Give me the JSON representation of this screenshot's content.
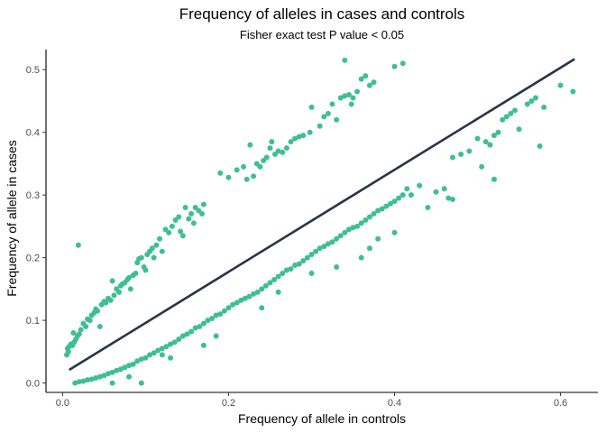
{
  "chart_data": {
    "type": "scatter",
    "title": "Frequency of alleles in cases and controls",
    "subtitle": "Fisher exact test P value < 0.05",
    "xlabel": "Frequency of allele in controls",
    "ylabel": "Frequency of allele in cases",
    "xlim": [
      -0.02,
      0.645
    ],
    "ylim": [
      -0.015,
      0.532
    ],
    "x_ticks": [
      0.0,
      0.2,
      0.4,
      0.6
    ],
    "x_tick_labels": [
      "0.0",
      "0.2",
      "0.4",
      "0.6"
    ],
    "y_ticks": [
      0.0,
      0.1,
      0.2,
      0.3,
      0.4,
      0.5
    ],
    "y_tick_labels": [
      "0.0",
      "0.1",
      "0.2",
      "0.3",
      "0.4",
      "0.5"
    ],
    "grid": false,
    "point_color": "#3fbf91",
    "line_color": "#253647",
    "trend_line": {
      "x": [
        0.008,
        0.617
      ],
      "y": [
        0.021,
        0.517
      ]
    },
    "points": [
      [
        0.005,
        0.045
      ],
      [
        0.006,
        0.055
      ],
      [
        0.007,
        0.05
      ],
      [
        0.008,
        0.058
      ],
      [
        0.01,
        0.062
      ],
      [
        0.012,
        0.06
      ],
      [
        0.014,
        0.065
      ],
      [
        0.013,
        0.08
      ],
      [
        0.016,
        0.07
      ],
      [
        0.018,
        0.075
      ],
      [
        0.02,
        0.078
      ],
      [
        0.022,
        0.085
      ],
      [
        0.019,
        0.22
      ],
      [
        0.025,
        0.095
      ],
      [
        0.028,
        0.09
      ],
      [
        0.03,
        0.102
      ],
      [
        0.033,
        0.1
      ],
      [
        0.035,
        0.108
      ],
      [
        0.038,
        0.112
      ],
      [
        0.04,
        0.118
      ],
      [
        0.042,
        0.115
      ],
      [
        0.045,
        0.09
      ],
      [
        0.047,
        0.125
      ],
      [
        0.05,
        0.13
      ],
      [
        0.052,
        0.128
      ],
      [
        0.055,
        0.135
      ],
      [
        0.058,
        0.132
      ],
      [
        0.06,
        0.163
      ],
      [
        0.062,
        0.14
      ],
      [
        0.065,
        0.15
      ],
      [
        0.068,
        0.145
      ],
      [
        0.07,
        0.155
      ],
      [
        0.072,
        0.158
      ],
      [
        0.075,
        0.16
      ],
      [
        0.078,
        0.165
      ],
      [
        0.08,
        0.168
      ],
      [
        0.082,
        0.15
      ],
      [
        0.085,
        0.172
      ],
      [
        0.088,
        0.175
      ],
      [
        0.09,
        0.192
      ],
      [
        0.092,
        0.198
      ],
      [
        0.095,
        0.2
      ],
      [
        0.098,
        0.185
      ],
      [
        0.1,
        0.18
      ],
      [
        0.102,
        0.205
      ],
      [
        0.105,
        0.21
      ],
      [
        0.108,
        0.215
      ],
      [
        0.11,
        0.2
      ],
      [
        0.113,
        0.22
      ],
      [
        0.117,
        0.23
      ],
      [
        0.12,
        0.21
      ],
      [
        0.124,
        0.245
      ],
      [
        0.128,
        0.24
      ],
      [
        0.132,
        0.25
      ],
      [
        0.136,
        0.26
      ],
      [
        0.14,
        0.265
      ],
      [
        0.142,
        0.242
      ],
      [
        0.145,
        0.235
      ],
      [
        0.148,
        0.28
      ],
      [
        0.152,
        0.262
      ],
      [
        0.155,
        0.27
      ],
      [
        0.158,
        0.255
      ],
      [
        0.16,
        0.28
      ],
      [
        0.164,
        0.275
      ],
      [
        0.168,
        0.27
      ],
      [
        0.17,
        0.285
      ],
      [
        0.19,
        0.335
      ],
      [
        0.2,
        0.328
      ],
      [
        0.21,
        0.34
      ],
      [
        0.218,
        0.345
      ],
      [
        0.222,
        0.325
      ],
      [
        0.226,
        0.38
      ],
      [
        0.23,
        0.33
      ],
      [
        0.234,
        0.35
      ],
      [
        0.238,
        0.345
      ],
      [
        0.242,
        0.355
      ],
      [
        0.246,
        0.36
      ],
      [
        0.25,
        0.375
      ],
      [
        0.252,
        0.385
      ],
      [
        0.256,
        0.365
      ],
      [
        0.26,
        0.37
      ],
      [
        0.265,
        0.368
      ],
      [
        0.27,
        0.375
      ],
      [
        0.275,
        0.385
      ],
      [
        0.28,
        0.39
      ],
      [
        0.285,
        0.393
      ],
      [
        0.29,
        0.395
      ],
      [
        0.298,
        0.4
      ],
      [
        0.3,
        0.44
      ],
      [
        0.31,
        0.41
      ],
      [
        0.315,
        0.425
      ],
      [
        0.32,
        0.43
      ],
      [
        0.325,
        0.445
      ],
      [
        0.33,
        0.42
      ],
      [
        0.335,
        0.455
      ],
      [
        0.34,
        0.458
      ],
      [
        0.345,
        0.46
      ],
      [
        0.348,
        0.445
      ],
      [
        0.35,
        0.455
      ],
      [
        0.355,
        0.465
      ],
      [
        0.34,
        0.515
      ],
      [
        0.36,
        0.485
      ],
      [
        0.365,
        0.49
      ],
      [
        0.37,
        0.475
      ],
      [
        0.375,
        0.48
      ],
      [
        0.4,
        0.505
      ],
      [
        0.41,
        0.51
      ],
      [
        0.015,
        0.0
      ],
      [
        0.02,
        0.002
      ],
      [
        0.025,
        0.003
      ],
      [
        0.03,
        0.005
      ],
      [
        0.035,
        0.006
      ],
      [
        0.04,
        0.008
      ],
      [
        0.045,
        0.01
      ],
      [
        0.05,
        0.012
      ],
      [
        0.055,
        0.015
      ],
      [
        0.06,
        0.017
      ],
      [
        0.065,
        0.02
      ],
      [
        0.07,
        0.022
      ],
      [
        0.075,
        0.025
      ],
      [
        0.08,
        0.028
      ],
      [
        0.085,
        0.03
      ],
      [
        0.09,
        0.035
      ],
      [
        0.095,
        0.038
      ],
      [
        0.1,
        0.04
      ],
      [
        0.105,
        0.045
      ],
      [
        0.11,
        0.048
      ],
      [
        0.115,
        0.052
      ],
      [
        0.12,
        0.055
      ],
      [
        0.125,
        0.058
      ],
      [
        0.13,
        0.062
      ],
      [
        0.135,
        0.065
      ],
      [
        0.14,
        0.07
      ],
      [
        0.145,
        0.075
      ],
      [
        0.15,
        0.078
      ],
      [
        0.155,
        0.082
      ],
      [
        0.16,
        0.088
      ],
      [
        0.165,
        0.09
      ],
      [
        0.17,
        0.095
      ],
      [
        0.175,
        0.1
      ],
      [
        0.18,
        0.103
      ],
      [
        0.185,
        0.108
      ],
      [
        0.19,
        0.11
      ],
      [
        0.195,
        0.115
      ],
      [
        0.2,
        0.12
      ],
      [
        0.205,
        0.125
      ],
      [
        0.21,
        0.128
      ],
      [
        0.215,
        0.132
      ],
      [
        0.22,
        0.135
      ],
      [
        0.225,
        0.138
      ],
      [
        0.23,
        0.142
      ],
      [
        0.235,
        0.145
      ],
      [
        0.24,
        0.15
      ],
      [
        0.245,
        0.155
      ],
      [
        0.25,
        0.16
      ],
      [
        0.255,
        0.165
      ],
      [
        0.26,
        0.17
      ],
      [
        0.265,
        0.175
      ],
      [
        0.27,
        0.18
      ],
      [
        0.275,
        0.182
      ],
      [
        0.28,
        0.188
      ],
      [
        0.285,
        0.19
      ],
      [
        0.29,
        0.195
      ],
      [
        0.295,
        0.2
      ],
      [
        0.3,
        0.205
      ],
      [
        0.305,
        0.21
      ],
      [
        0.31,
        0.215
      ],
      [
        0.315,
        0.218
      ],
      [
        0.32,
        0.222
      ],
      [
        0.325,
        0.225
      ],
      [
        0.33,
        0.23
      ],
      [
        0.335,
        0.235
      ],
      [
        0.34,
        0.24
      ],
      [
        0.345,
        0.245
      ],
      [
        0.35,
        0.248
      ],
      [
        0.355,
        0.25
      ],
      [
        0.36,
        0.255
      ],
      [
        0.365,
        0.26
      ],
      [
        0.37,
        0.265
      ],
      [
        0.375,
        0.27
      ],
      [
        0.38,
        0.275
      ],
      [
        0.385,
        0.278
      ],
      [
        0.39,
        0.282
      ],
      [
        0.395,
        0.286
      ],
      [
        0.4,
        0.29
      ],
      [
        0.405,
        0.295
      ],
      [
        0.41,
        0.3
      ],
      [
        0.415,
        0.31
      ],
      [
        0.42,
        0.3
      ],
      [
        0.43,
        0.315
      ],
      [
        0.44,
        0.28
      ],
      [
        0.45,
        0.305
      ],
      [
        0.46,
        0.31
      ],
      [
        0.465,
        0.295
      ],
      [
        0.47,
        0.36
      ],
      [
        0.48,
        0.365
      ],
      [
        0.49,
        0.37
      ],
      [
        0.5,
        0.39
      ],
      [
        0.51,
        0.385
      ],
      [
        0.515,
        0.38
      ],
      [
        0.52,
        0.395
      ],
      [
        0.525,
        0.4
      ],
      [
        0.53,
        0.42
      ],
      [
        0.535,
        0.425
      ],
      [
        0.54,
        0.43
      ],
      [
        0.545,
        0.435
      ],
      [
        0.55,
        0.405
      ],
      [
        0.56,
        0.445
      ],
      [
        0.565,
        0.45
      ],
      [
        0.57,
        0.455
      ],
      [
        0.575,
        0.378
      ],
      [
        0.58,
        0.44
      ],
      [
        0.6,
        0.475
      ],
      [
        0.615,
        0.465
      ],
      [
        0.52,
        0.325
      ],
      [
        0.505,
        0.345
      ],
      [
        0.47,
        0.293
      ],
      [
        0.095,
        0.0
      ],
      [
        0.06,
        0.0
      ],
      [
        0.08,
        0.01
      ],
      [
        0.12,
        0.045
      ],
      [
        0.13,
        0.04
      ],
      [
        0.17,
        0.06
      ],
      [
        0.185,
        0.075
      ],
      [
        0.24,
        0.12
      ],
      [
        0.26,
        0.145
      ],
      [
        0.3,
        0.175
      ],
      [
        0.33,
        0.185
      ],
      [
        0.36,
        0.2
      ],
      [
        0.37,
        0.215
      ],
      [
        0.38,
        0.23
      ],
      [
        0.4,
        0.24
      ]
    ]
  }
}
